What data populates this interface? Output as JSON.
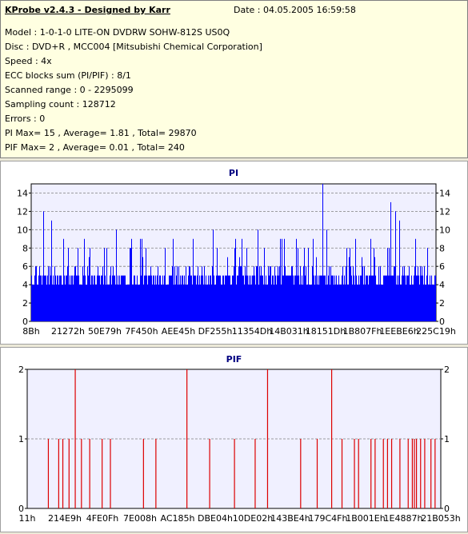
{
  "info": {
    "title": "KProbe v2.4.3 - Designed by Karr",
    "date": "Date : 04.05.2005 16:59:58",
    "lines": [
      "Model : 1-0-1-0 LITE-ON DVDRW SOHW-812S  US0Q",
      "Disc : DVD+R , MCC004 [Mitsubishi Chemical Corporation]",
      "Speed : 4x",
      "ECC blocks sum (PI/PIF) : 8/1",
      "Scanned range : 0 - 2295099",
      "Sampling count : 128712",
      "Errors : 0",
      "PI Max= 15 , Average= 1.81 , Total= 29870",
      "PIF Max= 2 , Average= 0.01 , Total= 240"
    ]
  },
  "colors": {
    "pi_bar": "#0000ff",
    "pif_bar": "#dd0000",
    "plot_bg": "#f0f0ff",
    "grid": "#808080"
  },
  "chart_data": [
    {
      "type": "bar",
      "title": "PI",
      "ylim": [
        0,
        15
      ],
      "yticks": [
        0,
        2,
        4,
        6,
        8,
        10,
        12,
        14
      ],
      "xticklabels": [
        "8Bh",
        "21272h",
        "50E79h",
        "7F450h",
        "AEE45h",
        "DF255h",
        "11354Dh",
        "14B031h",
        "18151Dh",
        "1B807Fh",
        "1EEBE6h",
        "225C19h"
      ],
      "grid": "dashed horizontal",
      "samples_note": "dense bars, typical level 3-5",
      "base_level": 4,
      "spikes": [
        {
          "x": 0.03,
          "v": 12
        },
        {
          "x": 0.05,
          "v": 11
        },
        {
          "x": 0.08,
          "v": 9
        },
        {
          "x": 0.13,
          "v": 9
        },
        {
          "x": 0.18,
          "v": 8
        },
        {
          "x": 0.21,
          "v": 10
        },
        {
          "x": 0.27,
          "v": 9
        },
        {
          "x": 0.33,
          "v": 8
        },
        {
          "x": 0.4,
          "v": 9
        },
        {
          "x": 0.45,
          "v": 10
        },
        {
          "x": 0.52,
          "v": 9
        },
        {
          "x": 0.56,
          "v": 10
        },
        {
          "x": 0.62,
          "v": 9
        },
        {
          "x": 0.66,
          "v": 8
        },
        {
          "x": 0.72,
          "v": 15
        },
        {
          "x": 0.73,
          "v": 10
        },
        {
          "x": 0.78,
          "v": 8
        },
        {
          "x": 0.84,
          "v": 9
        },
        {
          "x": 0.89,
          "v": 13
        },
        {
          "x": 0.9,
          "v": 12
        },
        {
          "x": 0.91,
          "v": 11
        },
        {
          "x": 0.95,
          "v": 9
        },
        {
          "x": 0.98,
          "v": 8
        }
      ]
    },
    {
      "type": "bar",
      "title": "PIF",
      "ylim": [
        0,
        2
      ],
      "yticks": [
        0,
        1,
        2
      ],
      "xticklabels": [
        "11h",
        "214E9h",
        "4FE0Fh",
        "7E008h",
        "AC185h",
        "DBE04h",
        "10DE02h",
        "143BE4h",
        "179C4Fh",
        "1B001Eh",
        "1E4887h",
        "21B053h"
      ],
      "grid": "dashed horizontal",
      "bars": [
        {
          "x": 0.05,
          "v": 1
        },
        {
          "x": 0.075,
          "v": 1
        },
        {
          "x": 0.085,
          "v": 1
        },
        {
          "x": 0.1,
          "v": 1
        },
        {
          "x": 0.115,
          "v": 2
        },
        {
          "x": 0.13,
          "v": 1
        },
        {
          "x": 0.15,
          "v": 1
        },
        {
          "x": 0.18,
          "v": 1
        },
        {
          "x": 0.2,
          "v": 1
        },
        {
          "x": 0.28,
          "v": 1
        },
        {
          "x": 0.31,
          "v": 1
        },
        {
          "x": 0.385,
          "v": 2
        },
        {
          "x": 0.44,
          "v": 1
        },
        {
          "x": 0.5,
          "v": 1
        },
        {
          "x": 0.55,
          "v": 1
        },
        {
          "x": 0.58,
          "v": 2
        },
        {
          "x": 0.66,
          "v": 1
        },
        {
          "x": 0.7,
          "v": 1
        },
        {
          "x": 0.735,
          "v": 2
        },
        {
          "x": 0.76,
          "v": 1
        },
        {
          "x": 0.79,
          "v": 1
        },
        {
          "x": 0.8,
          "v": 1
        },
        {
          "x": 0.83,
          "v": 1
        },
        {
          "x": 0.84,
          "v": 1
        },
        {
          "x": 0.86,
          "v": 1
        },
        {
          "x": 0.87,
          "v": 1
        },
        {
          "x": 0.88,
          "v": 1
        },
        {
          "x": 0.9,
          "v": 1
        },
        {
          "x": 0.92,
          "v": 1
        },
        {
          "x": 0.93,
          "v": 1
        },
        {
          "x": 0.935,
          "v": 1
        },
        {
          "x": 0.94,
          "v": 1
        },
        {
          "x": 0.95,
          "v": 1
        },
        {
          "x": 0.96,
          "v": 1
        },
        {
          "x": 0.975,
          "v": 1
        },
        {
          "x": 0.985,
          "v": 1
        }
      ]
    }
  ]
}
